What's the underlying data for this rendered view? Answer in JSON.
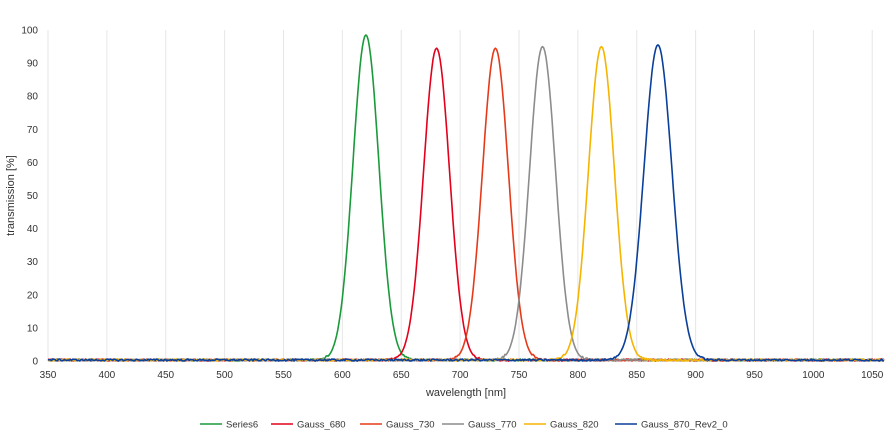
{
  "chart_data": {
    "type": "line",
    "title": "",
    "xlabel": "wavelength [nm]",
    "ylabel": "transmission [%]",
    "xlim": [
      350,
      1060
    ],
    "ylim": [
      0,
      100
    ],
    "x_ticks": [
      350,
      400,
      450,
      500,
      550,
      600,
      650,
      700,
      750,
      800,
      850,
      900,
      950,
      1000,
      1050
    ],
    "y_ticks": [
      0,
      10,
      20,
      30,
      40,
      50,
      60,
      70,
      80,
      90,
      100
    ],
    "grid": "vertical",
    "legend_position": "bottom",
    "series": [
      {
        "name": "Series6",
        "color": "#1a9a3a",
        "center": 620,
        "peak": 98.5,
        "fwhm": 26
      },
      {
        "name": "Gauss_680",
        "color": "#e3001b",
        "center": 680,
        "peak": 94.5,
        "fwhm": 26
      },
      {
        "name": "Gauss_730",
        "color": "#e53a1a",
        "center": 730,
        "peak": 94.5,
        "fwhm": 26
      },
      {
        "name": "Gauss_770",
        "color": "#8c8c8c",
        "center": 770,
        "peak": 95,
        "fwhm": 26
      },
      {
        "name": "Gauss_820",
        "color": "#f5b400",
        "center": 820,
        "peak": 95,
        "fwhm": 26
      },
      {
        "name": "Gauss_870_Rev2_0",
        "color": "#0a3f9a",
        "center": 868,
        "peak": 95.5,
        "fwhm": 28
      }
    ]
  }
}
